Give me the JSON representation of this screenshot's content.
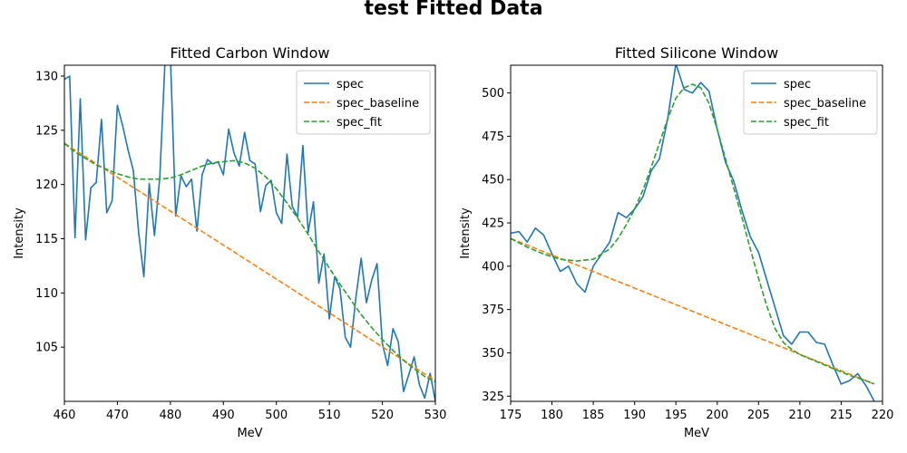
{
  "figure": {
    "suptitle": "test Fitted Data"
  },
  "chart_data": [
    {
      "type": "line",
      "title": "Fitted Carbon Window",
      "xlabel": "MeV",
      "ylabel": "Intensity",
      "xlim": [
        460,
        530
      ],
      "ylim": [
        100,
        131
      ],
      "xticks": [
        460,
        470,
        480,
        490,
        500,
        510,
        520,
        530
      ],
      "yticks": [
        105,
        110,
        115,
        120,
        125,
        130
      ],
      "legend": "top-right",
      "series": [
        {
          "name": "spec",
          "color": "#1f77b4",
          "style": "solid",
          "x": [
            460,
            461,
            462,
            463,
            464,
            465,
            466,
            467,
            468,
            469,
            470,
            471,
            472,
            473,
            474,
            475,
            476,
            477,
            478,
            479,
            480,
            481,
            482,
            483,
            484,
            485,
            486,
            487,
            488,
            489,
            490,
            491,
            492,
            493,
            494,
            495,
            496,
            497,
            498,
            499,
            500,
            501,
            502,
            503,
            504,
            505,
            506,
            507,
            508,
            509,
            510,
            511,
            512,
            513,
            514,
            515,
            516,
            517,
            518,
            519,
            520,
            521,
            522,
            523,
            524,
            525,
            526,
            527,
            528,
            529,
            530
          ],
          "y": [
            129.7,
            130.0,
            115.1,
            127.9,
            114.9,
            119.7,
            120.2,
            126.0,
            117.4,
            118.5,
            127.3,
            125.4,
            123.2,
            121.3,
            115.6,
            111.5,
            120.1,
            115.3,
            120.7,
            131.5,
            131.8,
            117.1,
            120.8,
            119.8,
            120.5,
            115.7,
            120.9,
            122.3,
            121.9,
            122.1,
            120.9,
            125.1,
            122.9,
            121.7,
            124.8,
            122.2,
            121.9,
            117.5,
            119.9,
            120.4,
            117.4,
            116.4,
            122.8,
            118.0,
            117.0,
            123.6,
            115.6,
            118.4,
            110.9,
            113.6,
            107.6,
            111.5,
            110.4,
            105.9,
            105.0,
            109.6,
            113.2,
            109.1,
            111.2,
            112.7,
            105.3,
            103.3,
            106.7,
            105.5,
            100.9,
            102.5,
            104.1,
            101.5,
            100.3,
            102.6,
            100.0
          ]
        },
        {
          "name": "spec_baseline",
          "color": "#ff7f0e",
          "style": "dashed",
          "x": [
            460,
            530
          ],
          "y": [
            123.8,
            101.9
          ]
        },
        {
          "name": "spec_fit",
          "color": "#2ca02c",
          "style": "dashed",
          "x": [
            460,
            462,
            464,
            466,
            468,
            470,
            472,
            474,
            476,
            478,
            480,
            482,
            484,
            486,
            488,
            490,
            492,
            494,
            496,
            498,
            500,
            502,
            504,
            506,
            508,
            510,
            512,
            514,
            516,
            518,
            520,
            522,
            524,
            526,
            528,
            530
          ],
          "y": [
            123.8,
            123.0,
            122.4,
            121.8,
            121.4,
            121.0,
            120.7,
            120.5,
            120.5,
            120.5,
            120.6,
            120.9,
            121.3,
            121.7,
            122.0,
            122.1,
            122.2,
            122.0,
            121.5,
            120.7,
            119.6,
            118.3,
            116.9,
            115.4,
            113.8,
            112.3,
            110.8,
            109.4,
            108.0,
            106.8,
            105.7,
            104.7,
            103.8,
            103.0,
            102.3,
            101.8
          ]
        }
      ]
    },
    {
      "type": "line",
      "title": "Fitted Silicone Window",
      "xlabel": "MeV",
      "ylabel": "Intensity",
      "xlim": [
        175,
        220
      ],
      "ylim": [
        322,
        516
      ],
      "xticks": [
        175,
        180,
        185,
        190,
        195,
        200,
        205,
        210,
        215,
        220
      ],
      "yticks": [
        325,
        350,
        375,
        400,
        425,
        450,
        475,
        500
      ],
      "legend": "top-right",
      "series": [
        {
          "name": "spec",
          "color": "#1f77b4",
          "style": "solid",
          "x": [
            175,
            176,
            177,
            178,
            179,
            180,
            181,
            182,
            183,
            184,
            185,
            186,
            187,
            188,
            189,
            190,
            191,
            192,
            193,
            194,
            195,
            196,
            197,
            198,
            199,
            200,
            201,
            202,
            203,
            204,
            205,
            206,
            207,
            208,
            209,
            210,
            211,
            212,
            213,
            214,
            215,
            216,
            217,
            218,
            219
          ],
          "y": [
            419,
            420,
            414,
            422,
            418,
            407,
            397,
            400,
            390,
            385,
            400,
            407,
            414,
            431,
            428,
            433,
            440,
            455,
            462,
            485,
            517,
            502,
            500,
            506,
            501,
            479,
            460,
            449,
            432,
            417,
            408,
            392,
            376,
            360,
            355,
            362,
            362,
            356,
            355,
            343,
            332,
            334,
            338,
            331,
            322
          ]
        },
        {
          "name": "spec_baseline",
          "color": "#ff7f0e",
          "style": "dashed",
          "x": [
            175,
            219
          ],
          "y": [
            416,
            332
          ]
        },
        {
          "name": "spec_fit",
          "color": "#2ca02c",
          "style": "dashed",
          "x": [
            175,
            177,
            179,
            181,
            183,
            185,
            187,
            188,
            189,
            190,
            191,
            192,
            193,
            194,
            195,
            196,
            197,
            198,
            199,
            200,
            201,
            202,
            203,
            204,
            205,
            206,
            207,
            208,
            209,
            210,
            212,
            214,
            216,
            218,
            219
          ],
          "y": [
            416,
            411,
            407,
            404,
            403,
            404,
            410,
            416,
            424,
            433,
            444,
            457,
            471,
            485,
            497,
            503,
            505,
            503,
            494,
            479,
            462,
            445,
            428,
            410,
            393,
            377,
            364,
            356,
            352,
            349,
            345,
            341,
            337,
            334,
            332
          ]
        }
      ]
    }
  ]
}
